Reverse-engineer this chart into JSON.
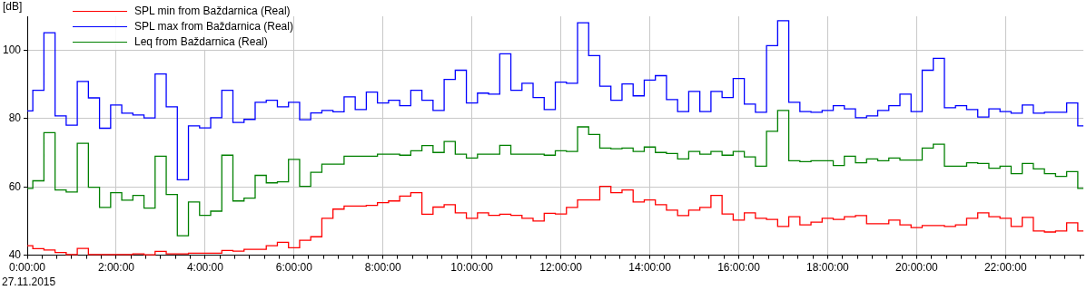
{
  "chart_data": {
    "type": "step",
    "ylabel": "[dB]",
    "annotations": [
      "27.11.2015"
    ],
    "x": [
      0,
      0.25,
      0.5,
      0.75,
      1,
      1.25,
      1.5,
      1.75,
      2,
      2.25,
      2.5,
      2.75,
      3,
      3.25,
      3.5,
      3.75,
      4,
      4.25,
      4.5,
      4.75,
      5,
      5.25,
      5.5,
      5.75,
      6,
      6.25,
      6.5,
      6.75,
      7,
      7.25,
      7.5,
      7.75,
      8,
      8.25,
      8.5,
      8.75,
      9,
      9.25,
      9.5,
      9.75,
      10,
      10.25,
      10.5,
      10.75,
      11,
      11.25,
      11.5,
      11.75,
      12,
      12.25,
      12.5,
      12.75,
      13,
      13.25,
      13.5,
      13.75,
      14,
      14.25,
      14.5,
      14.75,
      15,
      15.25,
      15.5,
      15.75,
      16,
      16.25,
      16.5,
      16.75,
      17,
      17.25,
      17.5,
      17.75,
      18,
      18.25,
      18.5,
      18.75,
      19,
      19.25,
      19.5,
      19.75,
      20,
      20.25,
      20.5,
      20.75,
      21,
      21.25,
      21.5,
      21.75,
      22,
      22.25,
      22.5,
      22.75,
      23,
      23.25,
      23.5,
      23.75
    ],
    "series": [
      {
        "name": "SPL min from Baždarnica (Real)",
        "color": "#ff0000",
        "values": [
          42.8,
          41.9,
          41.5,
          40.8,
          40.2,
          42.0,
          40.2,
          40.2,
          40.2,
          40.2,
          40.4,
          40.1,
          41.1,
          40.4,
          40.4,
          40.6,
          40.6,
          40.6,
          41.4,
          41.2,
          41.7,
          41.7,
          42.8,
          43.8,
          42.2,
          44.4,
          45.4,
          50.8,
          53.5,
          54.4,
          54.4,
          54.6,
          55.4,
          55.9,
          57.3,
          58.3,
          52.0,
          54.1,
          54.8,
          52.4,
          50.8,
          52.4,
          51.7,
          52.0,
          51.7,
          50.8,
          50.0,
          52.3,
          52.1,
          54.0,
          56.2,
          56.2,
          60.2,
          58.3,
          59.1,
          55.6,
          56.2,
          54.8,
          53.2,
          51.6,
          53.2,
          54.0,
          57.5,
          52.1,
          50.3,
          52.4,
          50.8,
          50.5,
          48.4,
          51.3,
          48.9,
          49.7,
          50.8,
          50.5,
          51.3,
          51.6,
          49.2,
          49.2,
          50.3,
          48.9,
          48.1,
          48.7,
          48.7,
          48.4,
          48.9,
          50.8,
          52.4,
          51.3,
          50.8,
          48.4,
          51.1,
          47.1,
          46.8,
          47.1,
          49.5,
          47.1
        ]
      },
      {
        "name": "SPL max from Baždarnica (Real)",
        "color": "#0000ff",
        "values": [
          82.3,
          88.3,
          105.2,
          80.8,
          78.1,
          90.9,
          86.1,
          77.2,
          84.0,
          81.6,
          81.1,
          80.2,
          93.1,
          83.5,
          62.1,
          77.9,
          77.3,
          80.3,
          88.3,
          78.9,
          79.8,
          84.8,
          85.4,
          83.5,
          84.8,
          79.7,
          81.7,
          82.4,
          82.0,
          86.4,
          82.7,
          87.8,
          84.6,
          85.4,
          83.8,
          88.3,
          85.4,
          82.4,
          91.5,
          94.2,
          84.6,
          87.5,
          87.2,
          99.0,
          88.3,
          90.4,
          86.2,
          82.7,
          90.7,
          90.4,
          108.1,
          98.5,
          89.5,
          85.4,
          90.2,
          86.7,
          91.3,
          92.6,
          85.6,
          82.1,
          88.0,
          82.1,
          88.0,
          86.2,
          91.8,
          84.3,
          81.9,
          101.4,
          108.7,
          84.8,
          82.1,
          81.9,
          82.4,
          83.8,
          82.9,
          80.3,
          80.8,
          82.4,
          83.8,
          87.2,
          82.1,
          94.2,
          97.7,
          83.2,
          83.8,
          82.7,
          80.5,
          82.9,
          82.1,
          81.6,
          84.0,
          81.6,
          81.9,
          81.9,
          84.6,
          77.9
        ]
      },
      {
        "name": "Leq from Baždarnica (Real)",
        "color": "#008000",
        "values": [
          59.6,
          61.8,
          75.9,
          59.1,
          58.5,
          72.8,
          59.9,
          54.0,
          58.3,
          56.1,
          57.5,
          53.8,
          69.0,
          57.8,
          45.7,
          55.6,
          51.7,
          52.9,
          69.3,
          55.9,
          56.7,
          63.4,
          61.2,
          61.5,
          68.1,
          60.2,
          64.3,
          66.7,
          66.7,
          69.0,
          69.0,
          69.0,
          69.6,
          69.6,
          69.3,
          70.6,
          72.1,
          70.1,
          73.3,
          69.6,
          68.5,
          69.6,
          69.6,
          72.2,
          69.6,
          69.6,
          69.6,
          69.3,
          70.6,
          70.4,
          77.6,
          75.4,
          71.4,
          71.2,
          71.4,
          70.4,
          71.7,
          70.1,
          69.8,
          68.2,
          70.4,
          69.6,
          70.4,
          69.3,
          70.4,
          68.8,
          66.1,
          76.3,
          82.4,
          67.7,
          67.4,
          67.7,
          67.7,
          66.3,
          69.0,
          67.1,
          68.2,
          67.7,
          68.5,
          67.9,
          67.9,
          71.4,
          72.5,
          66.1,
          66.1,
          67.1,
          66.9,
          65.5,
          66.1,
          63.9,
          66.9,
          65.3,
          63.9,
          63.1,
          64.5,
          59.6
        ]
      }
    ],
    "xlim": [
      0,
      23.75
    ],
    "xticks": [
      {
        "value": 0,
        "label": "0:00:00"
      },
      {
        "value": 0.33,
        "label": null
      },
      {
        "value": 0.67,
        "label": null
      },
      {
        "value": 1,
        "label": null
      },
      {
        "value": 1.33,
        "label": null
      },
      {
        "value": 1.67,
        "label": null
      },
      {
        "value": 2,
        "label": "2:00:00"
      },
      {
        "value": 2.33,
        "label": null
      },
      {
        "value": 2.67,
        "label": null
      },
      {
        "value": 3,
        "label": null
      },
      {
        "value": 3.33,
        "label": null
      },
      {
        "value": 3.67,
        "label": null
      },
      {
        "value": 4,
        "label": "4:00:00"
      },
      {
        "value": 4.33,
        "label": null
      },
      {
        "value": 4.67,
        "label": null
      },
      {
        "value": 5,
        "label": null
      },
      {
        "value": 5.33,
        "label": null
      },
      {
        "value": 5.67,
        "label": null
      },
      {
        "value": 6,
        "label": "6:00:00"
      },
      {
        "value": 6.33,
        "label": null
      },
      {
        "value": 6.67,
        "label": null
      },
      {
        "value": 7,
        "label": null
      },
      {
        "value": 7.33,
        "label": null
      },
      {
        "value": 7.67,
        "label": null
      },
      {
        "value": 8,
        "label": "8:00:00"
      },
      {
        "value": 8.33,
        "label": null
      },
      {
        "value": 8.67,
        "label": null
      },
      {
        "value": 9,
        "label": null
      },
      {
        "value": 9.33,
        "label": null
      },
      {
        "value": 9.67,
        "label": null
      },
      {
        "value": 10,
        "label": "10:00:00"
      },
      {
        "value": 10.33,
        "label": null
      },
      {
        "value": 10.67,
        "label": null
      },
      {
        "value": 11,
        "label": null
      },
      {
        "value": 11.33,
        "label": null
      },
      {
        "value": 11.67,
        "label": null
      },
      {
        "value": 12,
        "label": "12:00:00"
      },
      {
        "value": 12.33,
        "label": null
      },
      {
        "value": 12.67,
        "label": null
      },
      {
        "value": 13,
        "label": null
      },
      {
        "value": 13.33,
        "label": null
      },
      {
        "value": 13.67,
        "label": null
      },
      {
        "value": 14,
        "label": "14:00:00"
      },
      {
        "value": 14.33,
        "label": null
      },
      {
        "value": 14.67,
        "label": null
      },
      {
        "value": 15,
        "label": null
      },
      {
        "value": 15.33,
        "label": null
      },
      {
        "value": 15.67,
        "label": null
      },
      {
        "value": 16,
        "label": "16:00:00"
      },
      {
        "value": 16.33,
        "label": null
      },
      {
        "value": 16.67,
        "label": null
      },
      {
        "value": 17,
        "label": null
      },
      {
        "value": 17.33,
        "label": null
      },
      {
        "value": 17.67,
        "label": null
      },
      {
        "value": 18,
        "label": "18:00:00"
      },
      {
        "value": 18.33,
        "label": null
      },
      {
        "value": 18.67,
        "label": null
      },
      {
        "value": 19,
        "label": null
      },
      {
        "value": 19.33,
        "label": null
      },
      {
        "value": 19.67,
        "label": null
      },
      {
        "value": 20,
        "label": "20:00:00"
      },
      {
        "value": 20.33,
        "label": null
      },
      {
        "value": 20.67,
        "label": null
      },
      {
        "value": 21,
        "label": null
      },
      {
        "value": 21.33,
        "label": null
      },
      {
        "value": 21.67,
        "label": null
      },
      {
        "value": 22,
        "label": "22:00:00"
      },
      {
        "value": 22.33,
        "label": null
      },
      {
        "value": 22.67,
        "label": null
      },
      {
        "value": 23,
        "label": null
      },
      {
        "value": 23.33,
        "label": null
      },
      {
        "value": 23.67,
        "label": null
      }
    ],
    "ylim": [
      40,
      110
    ],
    "yticks": [
      40,
      60,
      80,
      100
    ],
    "grid": true,
    "legend": "top left"
  }
}
